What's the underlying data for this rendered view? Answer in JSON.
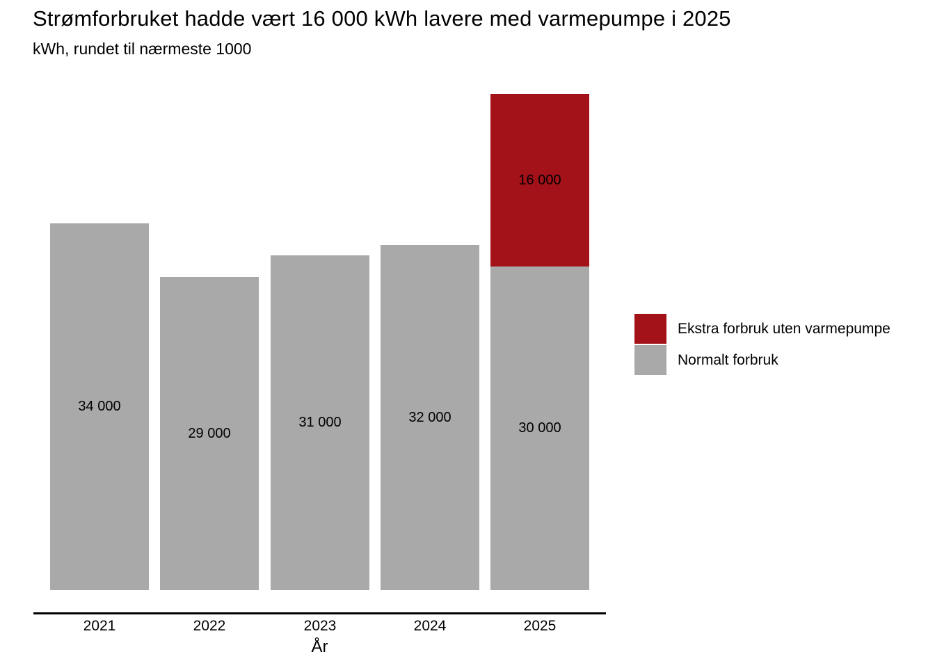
{
  "header": {
    "title": "Strømforbruket hadde vært 16 000 kWh lavere med varmepumpe i 2025",
    "subtitle": "kWh, rundet til nærmeste 1000"
  },
  "colors": {
    "extra": "#A31119",
    "normal": "#A9A9A9",
    "axis": "#000000",
    "text": "#000000",
    "background": "#FFFFFF"
  },
  "legend": {
    "position": "right",
    "items": [
      {
        "label": "Ekstra forbruk uten varmepumpe",
        "color": "#A31119"
      },
      {
        "label": "Normalt forbruk",
        "color": "#A9A9A9"
      }
    ]
  },
  "x_axis": {
    "label": "År",
    "ticks": [
      "2021",
      "2022",
      "2023",
      "2024",
      "2025"
    ]
  },
  "chart_data": {
    "type": "bar",
    "stacked": true,
    "title": "Strømforbruket hadde vært 16 000 kWh lavere med varmepumpe i 2025",
    "subtitle": "kWh, rundet til nærmeste 1000",
    "xlabel": "År",
    "ylabel": "",
    "unit": "kWh",
    "categories": [
      "2021",
      "2022",
      "2023",
      "2024",
      "2025"
    ],
    "series": [
      {
        "name": "Normalt forbruk",
        "color": "#A9A9A9",
        "values": [
          34000,
          29000,
          31000,
          32000,
          30000
        ],
        "labels": [
          "34 000",
          "29 000",
          "31 000",
          "32 000",
          "30 000"
        ]
      },
      {
        "name": "Ekstra forbruk uten varmepumpe",
        "color": "#A31119",
        "values": [
          0,
          0,
          0,
          0,
          16000
        ],
        "labels": [
          "",
          "",
          "",
          "",
          "16 000"
        ]
      }
    ],
    "ylim": [
      0,
      46000
    ],
    "grid": false,
    "y_axis_shown": false,
    "legend_position": "right",
    "value_labels": "centered-in-segment"
  }
}
